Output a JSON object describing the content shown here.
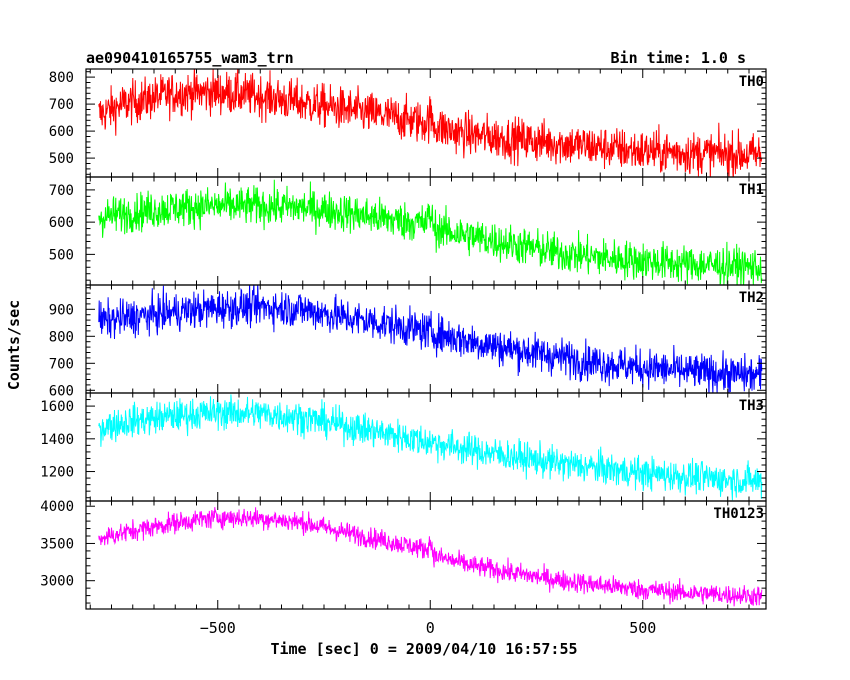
{
  "chart_data": {
    "type": "line",
    "title": "ae090410165755_wam3_trn",
    "subtitle": "Bin time: 1.0 s",
    "xlabel": "Time [sec] 0 = 2009/04/10 16:57:55",
    "ylabel": "Counts/sec",
    "xlim": [
      -810,
      790
    ],
    "x_ticks": [
      -500,
      0,
      500
    ],
    "x_tick_labels": [
      "−500",
      "0",
      "500"
    ],
    "data_x_range": [
      -780,
      780
    ],
    "grid": false,
    "panels": [
      {
        "name": "TH0",
        "color": "#ff0000",
        "ylim": [
          430,
          830
        ],
        "y_ticks": [
          500,
          600,
          700,
          800
        ],
        "noise": 40,
        "trend_x": [
          -780,
          -720,
          -600,
          -500,
          -400,
          -300,
          -200,
          -100,
          -10,
          0,
          10,
          50,
          100,
          200,
          300,
          400,
          500,
          600,
          700,
          780
        ],
        "trend_y": [
          660,
          700,
          740,
          745,
          730,
          705,
          680,
          655,
          630,
          655,
          620,
          600,
          585,
          570,
          555,
          540,
          525,
          520,
          515,
          510
        ]
      },
      {
        "name": "TH1",
        "color": "#00ff00",
        "ylim": [
          405,
          740
        ],
        "y_ticks": [
          500,
          600,
          700
        ],
        "noise": 30,
        "trend_x": [
          -780,
          -700,
          -600,
          -500,
          -400,
          -300,
          -200,
          -100,
          -10,
          0,
          10,
          100,
          200,
          300,
          400,
          500,
          600,
          700,
          780
        ],
        "trend_y": [
          615,
          630,
          645,
          650,
          650,
          645,
          630,
          610,
          595,
          630,
          580,
          555,
          530,
          505,
          490,
          480,
          470,
          465,
          460
        ]
      },
      {
        "name": "TH2",
        "color": "#0000ff",
        "ylim": [
          590,
          990
        ],
        "y_ticks": [
          600,
          700,
          800,
          900
        ],
        "noise": 35,
        "trend_x": [
          -780,
          -700,
          -600,
          -500,
          -400,
          -300,
          -200,
          -100,
          0,
          100,
          200,
          300,
          400,
          500,
          600,
          700,
          780
        ],
        "trend_y": [
          855,
          870,
          890,
          905,
          910,
          900,
          870,
          845,
          815,
          780,
          750,
          725,
          700,
          685,
          670,
          660,
          655
        ]
      },
      {
        "name": "TH3",
        "color": "#00ffff",
        "ylim": [
          1020,
          1680
        ],
        "y_ticks": [
          1200,
          1400,
          1600
        ],
        "noise": 50,
        "trend_x": [
          -780,
          -700,
          -600,
          -500,
          -400,
          -300,
          -200,
          -100,
          0,
          100,
          200,
          300,
          400,
          500,
          600,
          700,
          780
        ],
        "trend_y": [
          1470,
          1510,
          1540,
          1560,
          1555,
          1530,
          1480,
          1430,
          1380,
          1330,
          1290,
          1250,
          1220,
          1190,
          1170,
          1150,
          1140
        ]
      },
      {
        "name": "TH0123",
        "color": "#ff00ff",
        "ylim": [
          2620,
          4070
        ],
        "y_ticks": [
          3000,
          3500,
          4000
        ],
        "noise": 70,
        "trend_x": [
          -780,
          -700,
          -600,
          -500,
          -400,
          -300,
          -200,
          -100,
          -10,
          0,
          10,
          100,
          200,
          300,
          400,
          500,
          600,
          700,
          780
        ],
        "trend_y": [
          3570,
          3670,
          3780,
          3850,
          3840,
          3780,
          3650,
          3530,
          3420,
          3520,
          3330,
          3200,
          3100,
          3010,
          2940,
          2880,
          2840,
          2810,
          2790
        ]
      }
    ]
  }
}
